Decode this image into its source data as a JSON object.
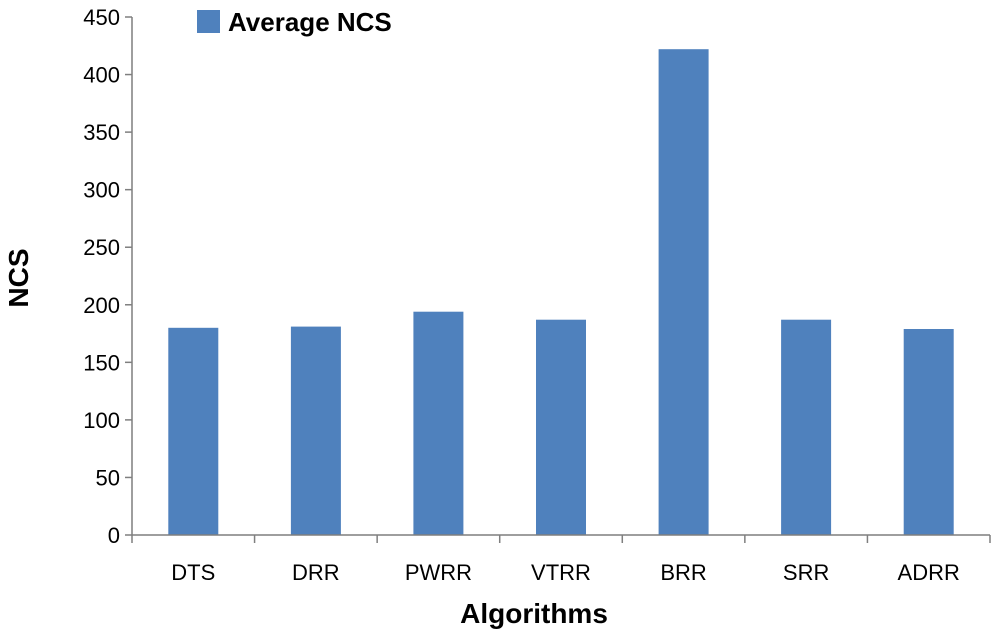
{
  "chart_data": {
    "type": "bar",
    "title": "",
    "xlabel": "Algorithms",
    "ylabel": "NCS",
    "categories": [
      "DTS",
      "DRR",
      "PWRR",
      "VTRR",
      "BRR",
      "SRR",
      "ADRR"
    ],
    "series": [
      {
        "name": "Average NCS",
        "values": [
          180,
          181,
          194,
          187,
          422,
          187,
          179
        ]
      }
    ],
    "ylim": [
      0,
      450
    ],
    "yticks": [
      0,
      50,
      100,
      150,
      200,
      250,
      300,
      350,
      400,
      450
    ],
    "grid": false,
    "legend_position": "top-left",
    "colors": {
      "bar": "#4f81bd",
      "axis": "#7f7f7f"
    }
  }
}
